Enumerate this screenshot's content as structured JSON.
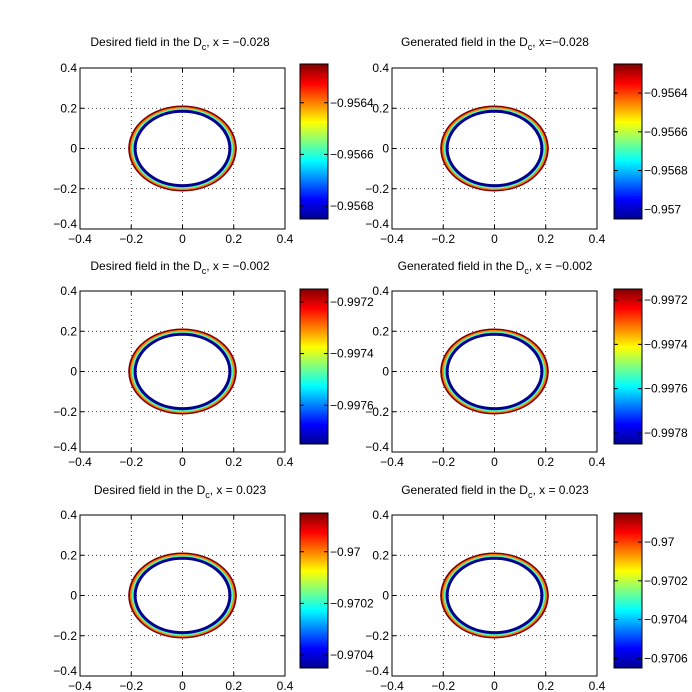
{
  "figure": {
    "background": "#ffffff",
    "grid_color": "#000000",
    "colormap": "jet",
    "colormap_stops": [
      "#00008f",
      "#0000ff",
      "#0080ff",
      "#00ffff",
      "#80ff80",
      "#ffff00",
      "#ff8000",
      "#ff0000",
      "#800000"
    ]
  },
  "chart_data": [
    {
      "type": "heatmap",
      "subtype": "contour",
      "title_prefix": "Desired field in the D",
      "title_sub": "c",
      "title_suffix": ", x = −0.028",
      "xlim": [
        -0.4,
        0.4
      ],
      "ylim": [
        -0.4,
        0.4
      ],
      "xticks": [
        "−0.4",
        "−0.2",
        "0",
        "0.2",
        "0.4"
      ],
      "yticks": [
        "−0.4",
        "−0.2",
        "0",
        "0.2",
        "0.4"
      ],
      "grid": true,
      "contour_radii": [
        0.185,
        0.192,
        0.199,
        0.206
      ],
      "contour_levels": [
        0.0,
        0.45,
        0.75,
        1.0
      ],
      "colorbar": {
        "vmin": -0.95685,
        "vmax": -0.95625,
        "ticks": [
          -0.9564,
          -0.9566,
          -0.9568
        ],
        "tick_labels": [
          "−0.9564",
          "−0.9566",
          "−0.9568"
        ]
      }
    },
    {
      "type": "heatmap",
      "subtype": "contour",
      "title_prefix": "Generated field in the D",
      "title_sub": "c",
      "title_suffix": ", x=−0.028",
      "xlim": [
        -0.4,
        0.4
      ],
      "ylim": [
        -0.4,
        0.4
      ],
      "xticks": [
        "−0.4",
        "−0.2",
        "0",
        "0.2",
        "0.4"
      ],
      "yticks": [
        "−0.4",
        "−0.2",
        "0",
        "0.2",
        "0.4"
      ],
      "grid": true,
      "contour_radii": [
        0.185,
        0.192,
        0.199,
        0.206
      ],
      "contour_levels": [
        0.0,
        0.45,
        0.75,
        1.0
      ],
      "colorbar": {
        "vmin": -0.95705,
        "vmax": -0.95625,
        "ticks": [
          -0.9564,
          -0.9566,
          -0.9568,
          -0.957
        ],
        "tick_labels": [
          "−0.9564",
          "−0.9566",
          "−0.9568",
          "−0.957"
        ]
      }
    },
    {
      "type": "heatmap",
      "subtype": "contour",
      "title_prefix": "Desired field in the D",
      "title_sub": "c",
      "title_suffix": ", x = −0.002",
      "xlim": [
        -0.4,
        0.4
      ],
      "ylim": [
        -0.4,
        0.4
      ],
      "xticks": [
        "−0.4",
        "−0.2",
        "0",
        "0.2",
        "0.4"
      ],
      "yticks": [
        "−0.4",
        "−0.2",
        "0",
        "0.2",
        "0.4"
      ],
      "grid": true,
      "contour_radii": [
        0.185,
        0.192,
        0.199,
        0.206
      ],
      "contour_levels": [
        0.0,
        0.45,
        0.75,
        1.0
      ],
      "colorbar": {
        "vmin": -0.99775,
        "vmax": -0.99715,
        "ticks": [
          -0.9972,
          -0.9974,
          -0.9976
        ],
        "tick_labels": [
          "−0.9972",
          "−0.9974",
          "−0.9976"
        ]
      }
    },
    {
      "type": "heatmap",
      "subtype": "contour",
      "title_prefix": "Generated field in the D",
      "title_sub": "c",
      "title_suffix": ", x = −0.002",
      "xlim": [
        -0.4,
        0.4
      ],
      "ylim": [
        -0.4,
        0.4
      ],
      "xticks": [
        "−0.4",
        "−0.2",
        "0",
        "0.2",
        "0.4"
      ],
      "yticks": [
        "−0.4",
        "−0.2",
        "0",
        "0.2",
        "0.4"
      ],
      "grid": true,
      "contour_radii": [
        0.185,
        0.192,
        0.199,
        0.206
      ],
      "contour_levels": [
        0.0,
        0.45,
        0.75,
        1.0
      ],
      "colorbar": {
        "vmin": -0.99785,
        "vmax": -0.99715,
        "ticks": [
          -0.9972,
          -0.9974,
          -0.9976,
          -0.9978
        ],
        "tick_labels": [
          "−0.9972",
          "−0.9974",
          "−0.9976",
          "−0.9978"
        ]
      }
    },
    {
      "type": "heatmap",
      "subtype": "contour",
      "title_prefix": "Desired field in the D",
      "title_sub": "c",
      "title_suffix": ", x = 0.023",
      "xlim": [
        -0.4,
        0.4
      ],
      "ylim": [
        -0.4,
        0.4
      ],
      "xticks": [
        "−0.4",
        "−0.2",
        "0",
        "0.2",
        "0.4"
      ],
      "yticks": [
        "−0.4",
        "−0.2",
        "0",
        "0.2",
        "0.4"
      ],
      "grid": true,
      "contour_radii": [
        0.185,
        0.192,
        0.199,
        0.206
      ],
      "contour_levels": [
        0.0,
        0.45,
        0.75,
        1.0
      ],
      "colorbar": {
        "vmin": -0.97045,
        "vmax": -0.96985,
        "ticks": [
          -0.97,
          -0.9702,
          -0.9704
        ],
        "tick_labels": [
          "−0.97",
          "−0.9702",
          "−0.9704"
        ]
      }
    },
    {
      "type": "heatmap",
      "subtype": "contour",
      "title_prefix": "Generated field in the D",
      "title_sub": "c",
      "title_suffix": ", x = 0.023",
      "xlim": [
        -0.4,
        0.4
      ],
      "ylim": [
        -0.4,
        0.4
      ],
      "xticks": [
        "−0.4",
        "−0.2",
        "0",
        "0.2",
        "0.4"
      ],
      "yticks": [
        "−0.4",
        "−0.2",
        "0",
        "0.2",
        "0.4"
      ],
      "grid": true,
      "contour_radii": [
        0.185,
        0.192,
        0.199,
        0.206
      ],
      "contour_levels": [
        0.0,
        0.45,
        0.75,
        1.0
      ],
      "colorbar": {
        "vmin": -0.97065,
        "vmax": -0.96985,
        "ticks": [
          -0.97,
          -0.9702,
          -0.9704,
          -0.9706
        ],
        "tick_labels": [
          "−0.97",
          "−0.9702",
          "−0.9704",
          "−0.9706"
        ]
      }
    }
  ]
}
